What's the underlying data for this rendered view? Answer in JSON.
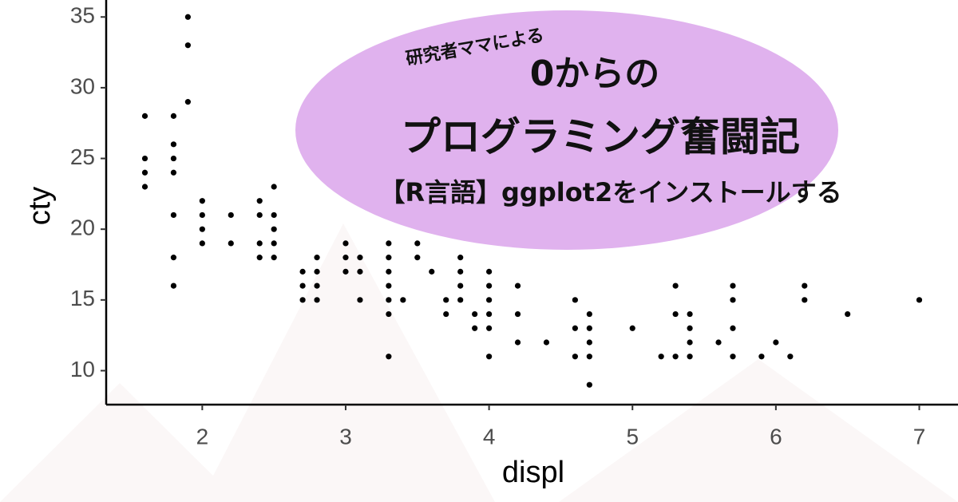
{
  "chart_data": {
    "type": "scatter",
    "x_label": "displ",
    "y_label": "cty",
    "x": [
      1.6,
      1.6,
      1.6,
      1.6,
      1.8,
      1.8,
      1.8,
      1.8,
      1.8,
      1.8,
      1.8,
      1.9,
      1.9,
      1.9,
      2.0,
      2.0,
      2.0,
      2.0,
      2.2,
      2.2,
      2.4,
      2.4,
      2.4,
      2.4,
      2.5,
      2.5,
      2.5,
      2.5,
      2.5,
      2.7,
      2.7,
      2.7,
      2.8,
      2.8,
      2.8,
      2.8,
      3.0,
      3.0,
      3.0,
      3.1,
      3.1,
      3.1,
      3.3,
      3.3,
      3.3,
      3.3,
      3.3,
      3.3,
      3.3,
      3.4,
      3.5,
      3.5,
      3.6,
      3.7,
      3.7,
      3.8,
      3.8,
      3.8,
      3.8,
      3.9,
      3.9,
      4.0,
      4.0,
      4.0,
      4.0,
      4.0,
      4.0,
      4.2,
      4.2,
      4.2,
      4.4,
      4.6,
      4.6,
      4.6,
      4.7,
      4.7,
      4.7,
      4.7,
      4.7,
      5.0,
      5.2,
      5.3,
      5.3,
      5.3,
      5.4,
      5.4,
      5.4,
      5.4,
      5.6,
      5.7,
      5.7,
      5.7,
      5.7,
      5.9,
      6.0,
      6.1,
      6.2,
      6.2,
      6.5,
      7.0
    ],
    "values": [
      28,
      25,
      24,
      23,
      28,
      26,
      25,
      24,
      21,
      18,
      16,
      35,
      33,
      29,
      22,
      21,
      20,
      19,
      21,
      19,
      22,
      21,
      19,
      18,
      23,
      21,
      20,
      19,
      18,
      17,
      16,
      15,
      18,
      17,
      16,
      15,
      19,
      18,
      17,
      18,
      17,
      15,
      19,
      18,
      17,
      16,
      15,
      14,
      11,
      15,
      19,
      18,
      17,
      15,
      14,
      18,
      17,
      16,
      15,
      14,
      13,
      17,
      16,
      15,
      14,
      13,
      11,
      16,
      14,
      12,
      12,
      15,
      13,
      11,
      14,
      13,
      12,
      11,
      9,
      13,
      11,
      16,
      14,
      11,
      14,
      13,
      12,
      11,
      12,
      16,
      15,
      13,
      11,
      11,
      12,
      11,
      16,
      15,
      14,
      15
    ],
    "color": "#000000",
    "xlim": [
      1.33,
      7.27
    ],
    "ylim": [
      7.6,
      36.2
    ],
    "xticks": [
      2,
      3,
      4,
      5,
      6,
      7
    ],
    "yticks": [
      10,
      15,
      20,
      25,
      30,
      35
    ]
  },
  "banner": {
    "subtitle": "研究者ママによる",
    "title_line1": "0からの",
    "title_line2": "プログラミング奮闘記",
    "caption": "【R言語】ggplot2をインストールする"
  }
}
